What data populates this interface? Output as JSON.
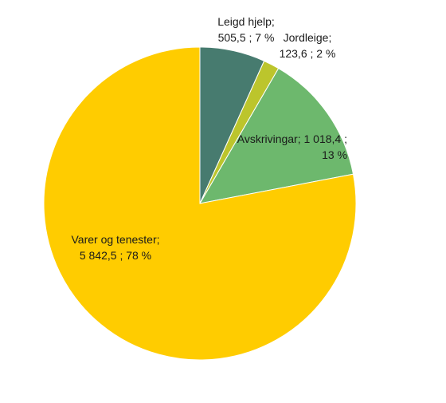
{
  "chart_data": {
    "type": "pie",
    "title": "",
    "start_angle_deg": 0,
    "direction": "clockwise",
    "slices": [
      {
        "name": "Leigd hjelp",
        "value": 505.5,
        "percent": 7,
        "color": "#477B6F",
        "label_lines": [
          "Leigd hjelp;",
          "505,5 ; 7 %"
        ]
      },
      {
        "name": "Jordleige",
        "value": 123.6,
        "percent": 2,
        "color": "#BCC52C",
        "label_lines": [
          "Jordleige;",
          "123,6 ; 2 %"
        ]
      },
      {
        "name": "Avskrivingar",
        "value": 1018.4,
        "percent": 13,
        "color": "#6DB86D",
        "label_lines": [
          "Avskrivingar;  1 018,4 ;",
          "13 %"
        ]
      },
      {
        "name": "Varer og tenester",
        "value": 5842.5,
        "percent": 78,
        "color": "#FFCC00",
        "label_lines": [
          "Varer og tenester;",
          "5 842,5 ; 78 %"
        ]
      }
    ]
  }
}
